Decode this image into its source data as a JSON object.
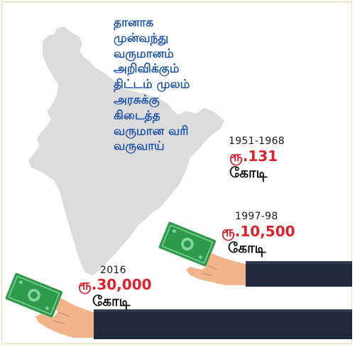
{
  "headline": {
    "lines": [
      "தானாக",
      "முன்வந்து",
      "வருமானம்",
      "அறிவிக்கும்",
      "திட்டம் முலம்",
      "அரசுக்கு",
      "கிடைத்த",
      "வருமான வரி",
      "வருவாய்"
    ]
  },
  "schemes": [
    {
      "period": "1951-1968",
      "amount": "ரூ.131",
      "unit": "கோடி"
    },
    {
      "period": "1997-98",
      "amount": "ரூ.10,500",
      "unit": "கோடி"
    },
    {
      "period": "2016",
      "amount": "ரூ.30,000",
      "unit": "கோடி"
    }
  ],
  "colors": {
    "headline": "#1f55b0",
    "amount": "#e2202b",
    "map": "#dcdcdc",
    "sleeve": "#1f2a3a",
    "banknote": "#2e9a4a"
  },
  "icons": [
    "india-map-icon",
    "hand-with-banknote-icon"
  ]
}
